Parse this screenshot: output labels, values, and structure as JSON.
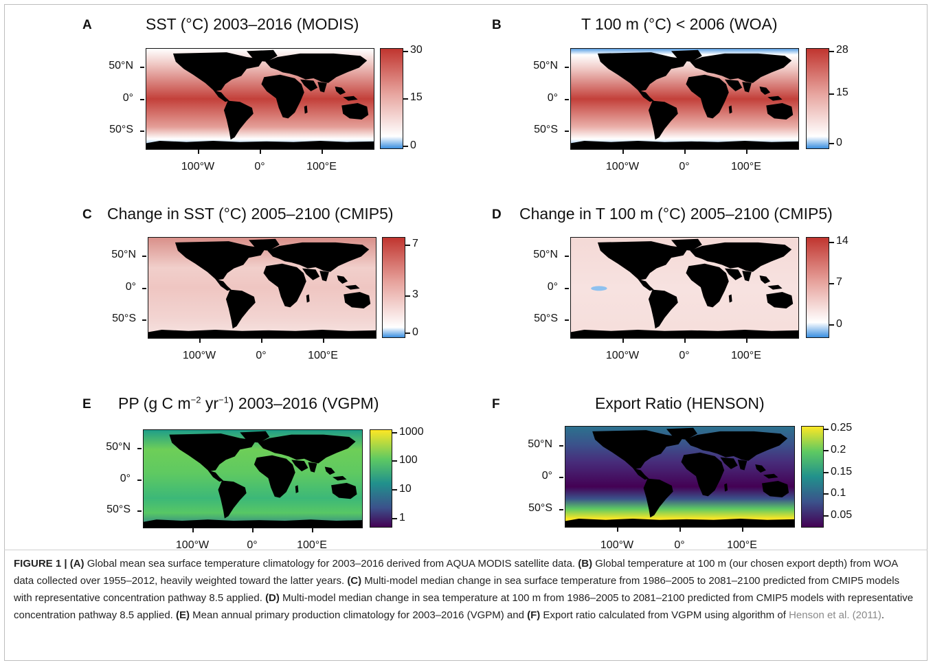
{
  "panels": [
    {
      "letter": "A",
      "title": "SST (°C) 2003–2016 (MODIS)",
      "colorbar_ticks": [
        "30",
        "15",
        "0"
      ],
      "colormap": "blue-white-red",
      "colors": {
        "low": "#3b8fe0",
        "mid": "#ffffff",
        "high": "#c0352f"
      }
    },
    {
      "letter": "B",
      "title": "T 100 m (°C) < 2006 (WOA)",
      "colorbar_ticks": [
        "28",
        "15",
        "0"
      ],
      "colormap": "blue-white-red",
      "colors": {
        "low": "#3b8fe0",
        "mid": "#ffffff",
        "high": "#c0352f"
      }
    },
    {
      "letter": "C",
      "title": "Change in SST (°C) 2005–2100 (CMIP5)",
      "colorbar_ticks": [
        "7",
        "3",
        "0"
      ],
      "colormap": "blue-white-red",
      "colors": {
        "low": "#3b8fe0",
        "mid": "#ffffff",
        "high": "#c0352f"
      }
    },
    {
      "letter": "D",
      "title": "Change in T 100 m (°C) 2005–2100 (CMIP5)",
      "colorbar_ticks": [
        "14",
        "7",
        "0"
      ],
      "colormap": "blue-white-red",
      "colors": {
        "low": "#3b8fe0",
        "mid": "#ffffff",
        "high": "#c0352f"
      }
    },
    {
      "letter": "E",
      "title_pre": "PP (g C m",
      "title_sup1": "−2",
      "title_mid": " yr",
      "title_sup2": "−1",
      "title_post": ") 2003–2016 (VGPM)",
      "colorbar_ticks": [
        "1000",
        "100",
        "10",
        "1"
      ],
      "colormap": "viridis"
    },
    {
      "letter": "F",
      "title": "Export Ratio (HENSON)",
      "colorbar_ticks": [
        "0.25",
        "0.2",
        "0.15",
        "0.1",
        "0.05"
      ],
      "colormap": "viridis"
    }
  ],
  "axes": {
    "lat_labels": [
      "50°N",
      "0°",
      "50°S"
    ],
    "lon_labels": [
      "100°W",
      "0°",
      "100°E"
    ]
  },
  "caption": {
    "fig_label": "FIGURE 1 | ",
    "a_tag": "(A)",
    "a_text": " Global mean sea surface temperature climatology for 2003–2016 derived from AQUA MODIS satellite data. ",
    "b_tag": "(B)",
    "b_text": " Global temperature at 100 m (our chosen export depth) from WOA data collected over 1955–2012, heavily weighted toward the latter years. ",
    "c_tag": "(C)",
    "c_text": " Multi-model median change in sea surface temperature from 1986–2005 to 2081–2100 predicted from CMIP5 models with representative concentration pathway 8.5 applied. ",
    "d_tag": "(D)",
    "d_text": " Multi-model median change in sea temperature at 100 m from 1986–2005 to 2081–2100 predicted from CMIP5 models with representative concentration pathway 8.5 applied. ",
    "e_tag": "(E)",
    "e_text": " Mean annual primary production climatology for 2003–2016 (VGPM) and ",
    "f_tag": "(F)",
    "f_text": " Export ratio calculated from VGPM using algorithm of ",
    "ref": "Henson et al. (2011)",
    "end": "."
  }
}
